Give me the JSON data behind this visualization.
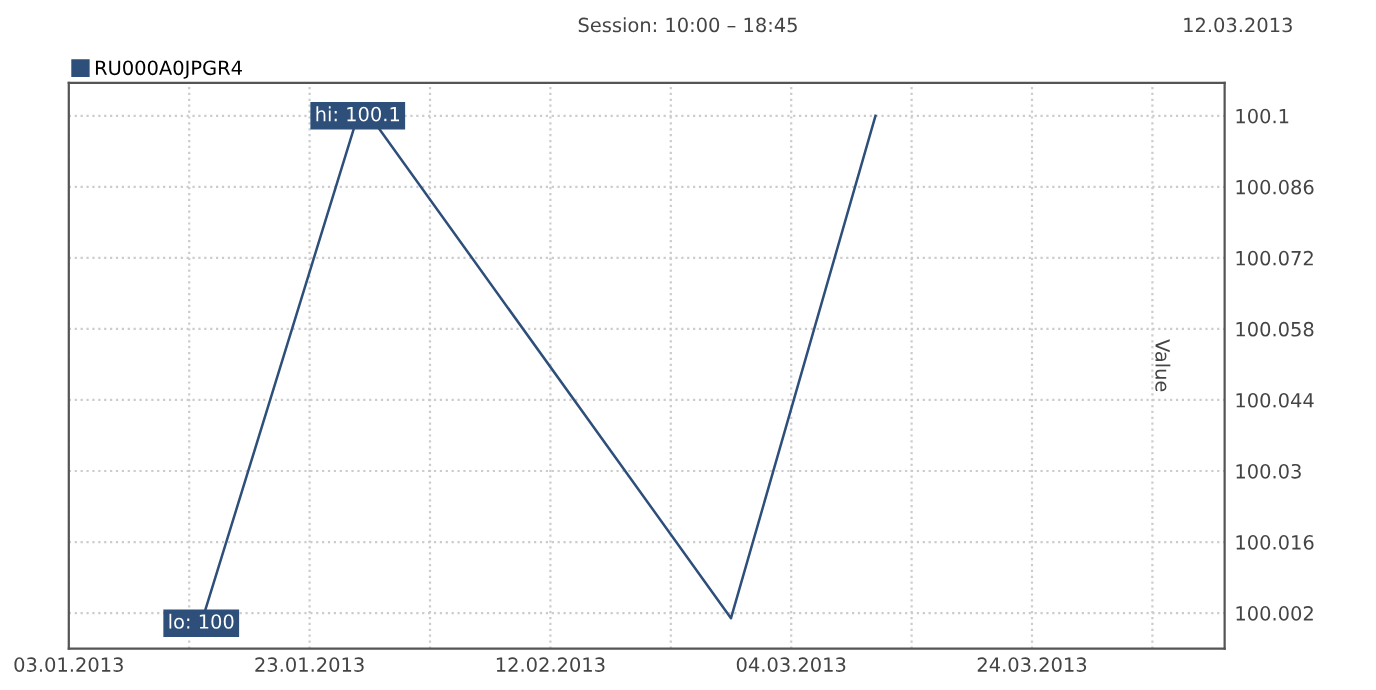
{
  "chart_data": {
    "type": "line",
    "subtitle": "Session: 10:00 – 18:45",
    "ylabel": "Value",
    "annotations": [
      "12.03.2013",
      {
        "text": "hi: 100.1",
        "x": "2013-01-27",
        "y": 100.1
      },
      {
        "text": "lo: 100",
        "x": "2013-01-14",
        "y": 100.0
      }
    ],
    "x": [
      "2013-01-14",
      "2013-01-27",
      "2013-01-28",
      "2013-02-27",
      "2013-03-11"
    ],
    "series": [
      {
        "name": "RU000A0JPGR4",
        "color": "#2d4f7a",
        "values": [
          100.0,
          100.1,
          100.1,
          100.001,
          100.1
        ]
      }
    ],
    "xlim": [
      "2013-01-03",
      "2013-04-09"
    ],
    "xticks": [
      {
        "value": "2013-01-03",
        "label": "03.01.2013"
      },
      {
        "value": "2013-01-13",
        "label": null
      },
      {
        "value": "2013-01-23",
        "label": "23.01.2013"
      },
      {
        "value": "2013-02-02",
        "label": null
      },
      {
        "value": "2013-02-12",
        "label": "12.02.2013"
      },
      {
        "value": "2013-02-22",
        "label": null
      },
      {
        "value": "2013-03-04",
        "label": "04.03.2013"
      },
      {
        "value": "2013-03-14",
        "label": null
      },
      {
        "value": "2013-03-24",
        "label": "24.03.2013"
      },
      {
        "value": "2013-04-03",
        "label": null
      }
    ],
    "ylim": [
      99.995,
      100.1065
    ],
    "yticks": [
      100.002,
      100.016,
      100.03,
      100.044,
      100.058,
      100.072,
      100.086,
      100.1
    ],
    "grid": true,
    "legend": "top left",
    "marker": "none",
    "line_style": "solid"
  }
}
